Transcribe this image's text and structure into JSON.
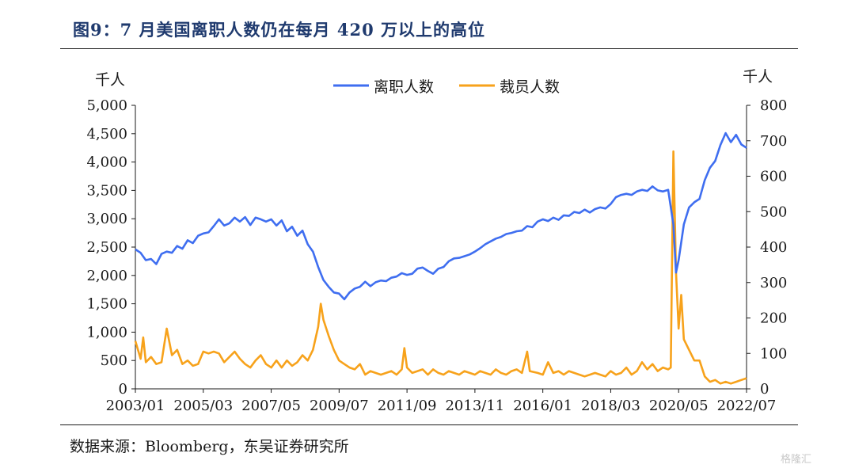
{
  "figure": {
    "title": "图9：7 月美国离职人数仍在每月 420 万以上的高位",
    "source": "数据来源：Bloomberg，东吴证券研究所",
    "watermark": "格隆汇"
  },
  "colors": {
    "quits": "#3f6ef0",
    "layoffs": "#f7a21b"
  },
  "chart_data": {
    "type": "line",
    "title": "",
    "xlabel": "",
    "y_left_unit": "千人",
    "y_right_unit": "千人",
    "y_left_lim": [
      0,
      5000
    ],
    "y_right_lim": [
      0,
      800
    ],
    "y_left_ticks": [
      "0",
      "500",
      "1,000",
      "1,500",
      "2,000",
      "2,500",
      "3,000",
      "3,500",
      "4,000",
      "4,500",
      "5,000"
    ],
    "y_right_ticks": [
      "0",
      "100",
      "200",
      "300",
      "400",
      "500",
      "600",
      "700",
      "800"
    ],
    "x_ticks": [
      "2003/01",
      "2005/03",
      "2007/05",
      "2009/07",
      "2011/09",
      "2013/11",
      "2016/01",
      "2018/03",
      "2020/05",
      "2022/07"
    ],
    "x_range": [
      "2003/01",
      "2022/07"
    ],
    "legend": {
      "position": "top-center",
      "entries": [
        "离职人数",
        "裁员人数"
      ]
    },
    "grid": false,
    "series": [
      {
        "name": "离职人数",
        "axis": "left",
        "color": "#3f6ef0",
        "points": [
          [
            "2003/01",
            2460
          ],
          [
            "2003/03",
            2400
          ],
          [
            "2003/05",
            2270
          ],
          [
            "2003/07",
            2290
          ],
          [
            "2003/09",
            2200
          ],
          [
            "2003/11",
            2380
          ],
          [
            "2004/01",
            2420
          ],
          [
            "2004/03",
            2400
          ],
          [
            "2004/05",
            2520
          ],
          [
            "2004/07",
            2470
          ],
          [
            "2004/09",
            2620
          ],
          [
            "2004/11",
            2570
          ],
          [
            "2005/01",
            2700
          ],
          [
            "2005/03",
            2740
          ],
          [
            "2005/05",
            2760
          ],
          [
            "2005/07",
            2870
          ],
          [
            "2005/09",
            2990
          ],
          [
            "2005/11",
            2880
          ],
          [
            "2006/01",
            2920
          ],
          [
            "2006/03",
            3020
          ],
          [
            "2006/05",
            2950
          ],
          [
            "2006/07",
            3030
          ],
          [
            "2006/09",
            2890
          ],
          [
            "2006/11",
            3020
          ],
          [
            "2007/01",
            2990
          ],
          [
            "2007/03",
            2950
          ],
          [
            "2007/05",
            2990
          ],
          [
            "2007/07",
            2880
          ],
          [
            "2007/09",
            2970
          ],
          [
            "2007/11",
            2780
          ],
          [
            "2008/01",
            2860
          ],
          [
            "2008/03",
            2700
          ],
          [
            "2008/05",
            2790
          ],
          [
            "2008/07",
            2550
          ],
          [
            "2008/09",
            2420
          ],
          [
            "2008/11",
            2150
          ],
          [
            "2009/01",
            1920
          ],
          [
            "2009/03",
            1800
          ],
          [
            "2009/05",
            1700
          ],
          [
            "2009/07",
            1680
          ],
          [
            "2009/09",
            1580
          ],
          [
            "2009/11",
            1700
          ],
          [
            "2010/01",
            1770
          ],
          [
            "2010/03",
            1800
          ],
          [
            "2010/05",
            1890
          ],
          [
            "2010/07",
            1810
          ],
          [
            "2010/09",
            1880
          ],
          [
            "2010/11",
            1910
          ],
          [
            "2011/01",
            1900
          ],
          [
            "2011/03",
            1960
          ],
          [
            "2011/05",
            1980
          ],
          [
            "2011/07",
            2040
          ],
          [
            "2011/09",
            2010
          ],
          [
            "2011/11",
            2030
          ],
          [
            "2012/01",
            2120
          ],
          [
            "2012/03",
            2140
          ],
          [
            "2012/05",
            2080
          ],
          [
            "2012/07",
            2030
          ],
          [
            "2012/09",
            2120
          ],
          [
            "2012/11",
            2150
          ],
          [
            "2013/01",
            2250
          ],
          [
            "2013/03",
            2300
          ],
          [
            "2013/05",
            2310
          ],
          [
            "2013/07",
            2340
          ],
          [
            "2013/09",
            2370
          ],
          [
            "2013/11",
            2420
          ],
          [
            "2014/01",
            2480
          ],
          [
            "2014/03",
            2550
          ],
          [
            "2014/05",
            2600
          ],
          [
            "2014/07",
            2650
          ],
          [
            "2014/09",
            2680
          ],
          [
            "2014/11",
            2730
          ],
          [
            "2015/01",
            2750
          ],
          [
            "2015/03",
            2780
          ],
          [
            "2015/05",
            2790
          ],
          [
            "2015/07",
            2870
          ],
          [
            "2015/09",
            2850
          ],
          [
            "2015/11",
            2950
          ],
          [
            "2016/01",
            2990
          ],
          [
            "2016/03",
            2960
          ],
          [
            "2016/05",
            3020
          ],
          [
            "2016/07",
            2980
          ],
          [
            "2016/09",
            3060
          ],
          [
            "2016/11",
            3050
          ],
          [
            "2017/01",
            3120
          ],
          [
            "2017/03",
            3100
          ],
          [
            "2017/05",
            3160
          ],
          [
            "2017/07",
            3110
          ],
          [
            "2017/09",
            3170
          ],
          [
            "2017/11",
            3200
          ],
          [
            "2018/01",
            3180
          ],
          [
            "2018/03",
            3260
          ],
          [
            "2018/05",
            3380
          ],
          [
            "2018/07",
            3420
          ],
          [
            "2018/09",
            3440
          ],
          [
            "2018/11",
            3420
          ],
          [
            "2019/01",
            3480
          ],
          [
            "2019/03",
            3510
          ],
          [
            "2019/05",
            3490
          ],
          [
            "2019/07",
            3570
          ],
          [
            "2019/09",
            3500
          ],
          [
            "2019/11",
            3480
          ],
          [
            "2020/01",
            3510
          ],
          [
            "2020/03",
            2900
          ],
          [
            "2020/04",
            2050
          ],
          [
            "2020/05",
            2270
          ],
          [
            "2020/07",
            2900
          ],
          [
            "2020/09",
            3200
          ],
          [
            "2020/11",
            3290
          ],
          [
            "2021/01",
            3350
          ],
          [
            "2021/03",
            3680
          ],
          [
            "2021/05",
            3900
          ],
          [
            "2021/07",
            4020
          ],
          [
            "2021/09",
            4300
          ],
          [
            "2021/11",
            4510
          ],
          [
            "2022/01",
            4350
          ],
          [
            "2022/03",
            4480
          ],
          [
            "2022/05",
            4310
          ],
          [
            "2022/07",
            4250
          ]
        ]
      },
      {
        "name": "裁员人数",
        "axis": "right",
        "color": "#f7a21b",
        "points": [
          [
            "2003/01",
            135
          ],
          [
            "2003/03",
            85
          ],
          [
            "2003/04",
            145
          ],
          [
            "2003/05",
            75
          ],
          [
            "2003/07",
            90
          ],
          [
            "2003/09",
            70
          ],
          [
            "2003/11",
            75
          ],
          [
            "2004/01",
            170
          ],
          [
            "2004/03",
            95
          ],
          [
            "2004/05",
            110
          ],
          [
            "2004/07",
            70
          ],
          [
            "2004/09",
            80
          ],
          [
            "2004/11",
            65
          ],
          [
            "2005/01",
            70
          ],
          [
            "2005/03",
            105
          ],
          [
            "2005/05",
            100
          ],
          [
            "2005/07",
            105
          ],
          [
            "2005/09",
            100
          ],
          [
            "2005/11",
            75
          ],
          [
            "2006/01",
            90
          ],
          [
            "2006/03",
            105
          ],
          [
            "2006/05",
            85
          ],
          [
            "2006/07",
            70
          ],
          [
            "2006/09",
            60
          ],
          [
            "2006/11",
            80
          ],
          [
            "2007/01",
            95
          ],
          [
            "2007/03",
            70
          ],
          [
            "2007/05",
            60
          ],
          [
            "2007/07",
            80
          ],
          [
            "2007/09",
            60
          ],
          [
            "2007/11",
            80
          ],
          [
            "2008/01",
            65
          ],
          [
            "2008/03",
            75
          ],
          [
            "2008/05",
            95
          ],
          [
            "2008/07",
            80
          ],
          [
            "2008/09",
            110
          ],
          [
            "2008/11",
            175
          ],
          [
            "2008/12",
            240
          ],
          [
            "2009/01",
            195
          ],
          [
            "2009/03",
            150
          ],
          [
            "2009/05",
            110
          ],
          [
            "2009/07",
            80
          ],
          [
            "2009/09",
            70
          ],
          [
            "2009/11",
            60
          ],
          [
            "2010/01",
            55
          ],
          [
            "2010/03",
            70
          ],
          [
            "2010/05",
            40
          ],
          [
            "2010/07",
            50
          ],
          [
            "2010/09",
            45
          ],
          [
            "2010/11",
            40
          ],
          [
            "2011/01",
            45
          ],
          [
            "2011/03",
            50
          ],
          [
            "2011/05",
            40
          ],
          [
            "2011/07",
            55
          ],
          [
            "2011/08",
            115
          ],
          [
            "2011/09",
            60
          ],
          [
            "2011/11",
            45
          ],
          [
            "2012/01",
            50
          ],
          [
            "2012/03",
            55
          ],
          [
            "2012/05",
            40
          ],
          [
            "2012/07",
            55
          ],
          [
            "2012/09",
            45
          ],
          [
            "2012/11",
            40
          ],
          [
            "2013/01",
            50
          ],
          [
            "2013/03",
            45
          ],
          [
            "2013/05",
            40
          ],
          [
            "2013/07",
            50
          ],
          [
            "2013/09",
            45
          ],
          [
            "2013/11",
            40
          ],
          [
            "2014/01",
            50
          ],
          [
            "2014/03",
            45
          ],
          [
            "2014/05",
            40
          ],
          [
            "2014/07",
            55
          ],
          [
            "2014/09",
            45
          ],
          [
            "2014/11",
            40
          ],
          [
            "2015/01",
            50
          ],
          [
            "2015/03",
            55
          ],
          [
            "2015/05",
            45
          ],
          [
            "2015/07",
            105
          ],
          [
            "2015/08",
            50
          ],
          [
            "2015/11",
            45
          ],
          [
            "2016/01",
            40
          ],
          [
            "2016/03",
            75
          ],
          [
            "2016/05",
            45
          ],
          [
            "2016/07",
            50
          ],
          [
            "2016/09",
            40
          ],
          [
            "2016/11",
            50
          ],
          [
            "2017/01",
            45
          ],
          [
            "2017/03",
            40
          ],
          [
            "2017/05",
            35
          ],
          [
            "2017/07",
            40
          ],
          [
            "2017/09",
            45
          ],
          [
            "2017/11",
            40
          ],
          [
            "2018/01",
            35
          ],
          [
            "2018/03",
            50
          ],
          [
            "2018/05",
            40
          ],
          [
            "2018/07",
            45
          ],
          [
            "2018/09",
            60
          ],
          [
            "2018/11",
            40
          ],
          [
            "2019/01",
            50
          ],
          [
            "2019/03",
            75
          ],
          [
            "2019/05",
            55
          ],
          [
            "2019/07",
            70
          ],
          [
            "2019/09",
            50
          ],
          [
            "2019/11",
            60
          ],
          [
            "2020/01",
            55
          ],
          [
            "2020/02",
            60
          ],
          [
            "2020/03",
            670
          ],
          [
            "2020/04",
            330
          ],
          [
            "2020/05",
            170
          ],
          [
            "2020/06",
            265
          ],
          [
            "2020/07",
            140
          ],
          [
            "2020/09",
            110
          ],
          [
            "2020/11",
            80
          ],
          [
            "2021/01",
            80
          ],
          [
            "2021/03",
            35
          ],
          [
            "2021/05",
            20
          ],
          [
            "2021/07",
            25
          ],
          [
            "2021/09",
            15
          ],
          [
            "2021/11",
            20
          ],
          [
            "2022/01",
            15
          ],
          [
            "2022/03",
            20
          ],
          [
            "2022/05",
            25
          ],
          [
            "2022/07",
            30
          ]
        ]
      }
    ]
  }
}
